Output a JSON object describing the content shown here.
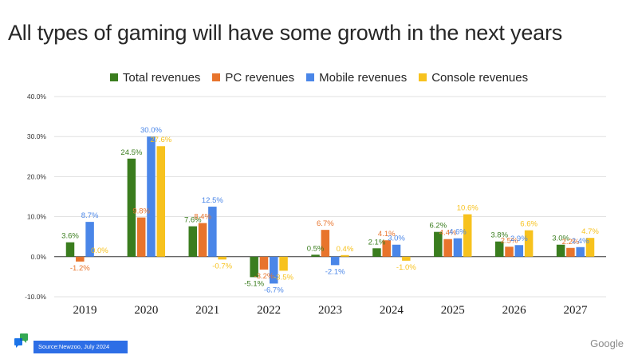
{
  "title": "All types of gaming will have some growth in the next years",
  "source": "Source:Newzoo, July 2024",
  "brand": "Google",
  "logo_icon": "chat-bubbles-logo-icon",
  "chart_data": {
    "type": "bar",
    "title": "All types of gaming will have some growth in the next years",
    "xlabel": "",
    "ylabel": "",
    "ylim": [
      -10,
      40
    ],
    "yticks": [
      "-10.0%",
      "0.0%",
      "10.0%",
      "20.0%",
      "30.0%",
      "40.0%"
    ],
    "ytick_values": [
      -10,
      0,
      10,
      20,
      30,
      40
    ],
    "grid": true,
    "legend_position": "top-center",
    "categories": [
      "2019",
      "2020",
      "2021",
      "2022",
      "2023",
      "2024",
      "2025",
      "2026",
      "2027"
    ],
    "series": [
      {
        "name": "Total revenues",
        "color": "#3a7d1e",
        "values": [
          3.6,
          24.5,
          7.6,
          -5.1,
          0.5,
          2.1,
          6.2,
          3.8,
          3.0
        ],
        "labels": [
          "3.6%",
          "24.5%",
          "7.6%",
          "-5.1%",
          "0.5%",
          "2.1%",
          "6.2%",
          "3.8%",
          "3.0%"
        ]
      },
      {
        "name": "PC revenues",
        "color": "#e8742c",
        "values": [
          -1.2,
          9.8,
          8.4,
          -3.2,
          6.7,
          4.1,
          4.4,
          2.5,
          2.2
        ],
        "labels": [
          "-1.2%",
          "9.8%",
          "8.4%",
          "-3.2%",
          "6.7%",
          "4.1%",
          "4.4%",
          "2.5%",
          "2.2%"
        ]
      },
      {
        "name": "Mobile revenues",
        "color": "#4a86e8",
        "values": [
          8.7,
          30.0,
          12.5,
          -6.7,
          -2.1,
          3.0,
          4.6,
          2.9,
          2.4
        ],
        "labels": [
          "8.7%",
          "30.0%",
          "12.5%",
          "-6.7%",
          "-2.1%",
          "3.0%",
          "4.6%",
          "2.9%",
          "2.4%"
        ]
      },
      {
        "name": "Console revenues",
        "color": "#f7c21e",
        "values": [
          0.0,
          27.6,
          -0.7,
          -3.5,
          0.4,
          -1.0,
          10.6,
          6.6,
          4.7
        ],
        "labels": [
          "0.0%",
          "27.6%",
          "-0.7%",
          "-3.5%",
          "0.4%",
          "-1.0%",
          "10.6%",
          "6.6%",
          "4.7%"
        ]
      }
    ]
  }
}
